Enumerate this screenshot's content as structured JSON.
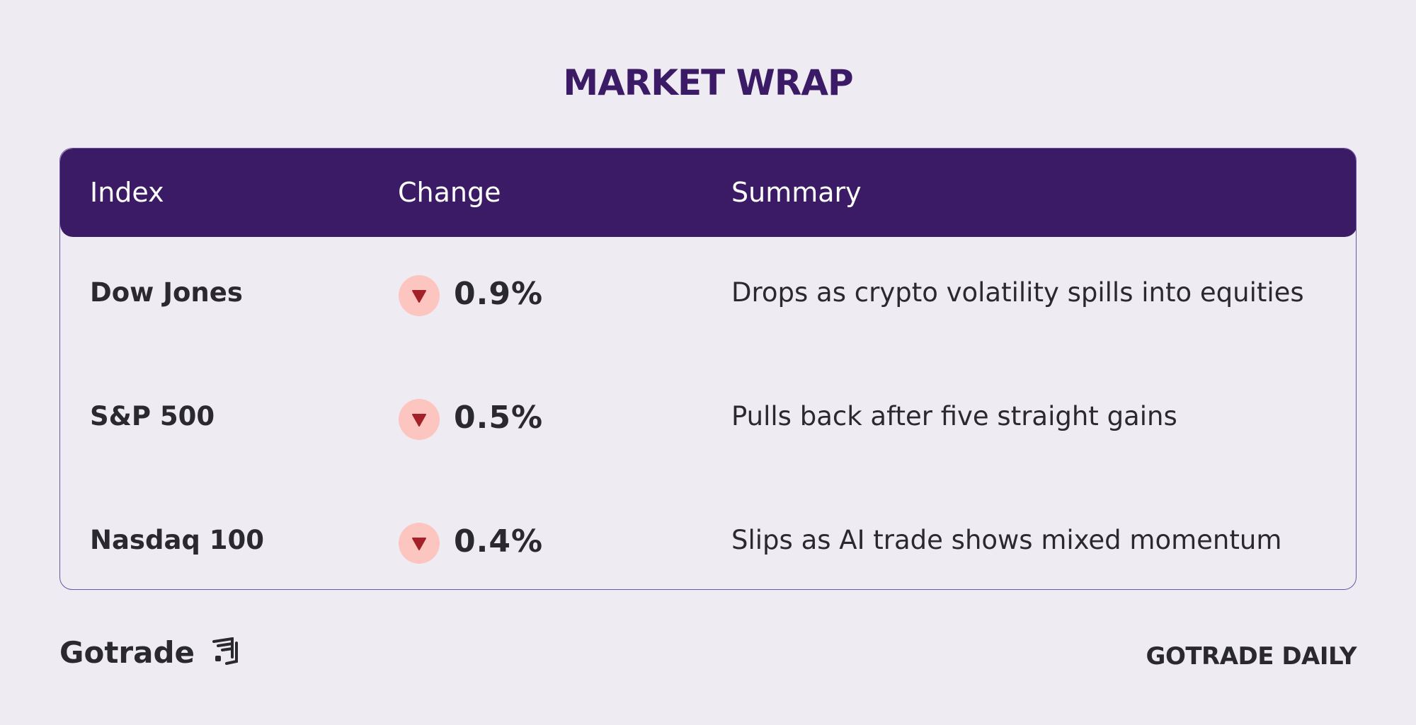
{
  "title": "MARKET WRAP",
  "table": {
    "header": [
      "Index",
      "Change",
      "Summary"
    ],
    "rows": [
      [
        "Dow Jones",
        "0.9%",
        "Drops as crypto volatility spills into equities"
      ],
      [
        "S&P 500",
        "0.5%",
        "Pulls back after five straight gains"
      ],
      [
        "Nasdaq 100",
        "0.4%",
        "Slips as AI trade shows mixed momentum"
      ]
    ]
  },
  "footer": {
    "brand": "Gotrade",
    "tagline": "GOTRADE DAILY"
  }
}
